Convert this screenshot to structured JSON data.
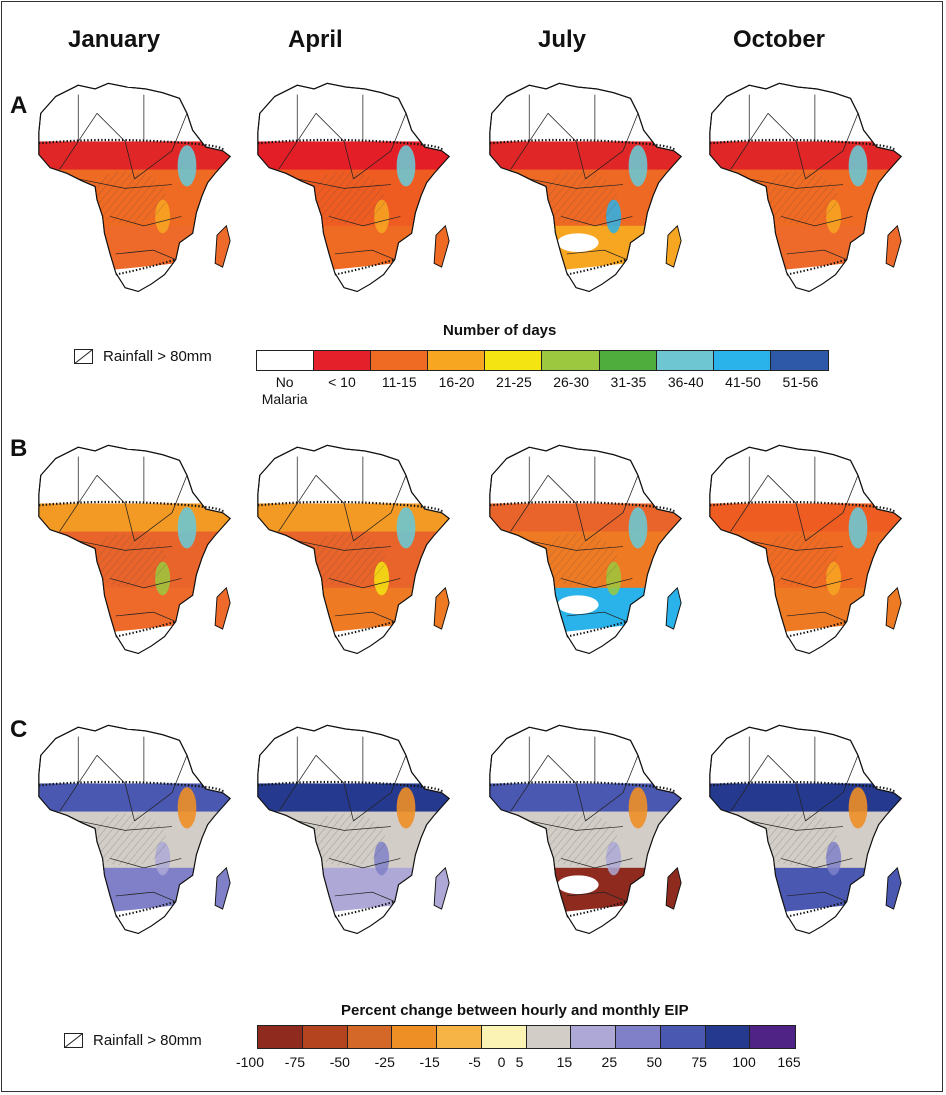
{
  "columns": [
    "January",
    "April",
    "July",
    "October"
  ],
  "rows": [
    "A",
    "B",
    "C"
  ],
  "rainfall_label": "Rainfall > 80mm",
  "legend_days": {
    "title": "Number of days",
    "bins": [
      {
        "label": "No\nMalaria",
        "color": "#ffffff"
      },
      {
        "label": "< 10",
        "color": "#e4202a"
      },
      {
        "label": "11-15",
        "color": "#ef6a22"
      },
      {
        "label": "16-20",
        "color": "#f7a622"
      },
      {
        "label": "21-25",
        "color": "#f3e412"
      },
      {
        "label": "26-30",
        "color": "#9bc83e"
      },
      {
        "label": "31-35",
        "color": "#4fad3e"
      },
      {
        "label": "36-40",
        "color": "#6dc6d1"
      },
      {
        "label": "41-50",
        "color": "#2ab2ea"
      },
      {
        "label": "51-56",
        "color": "#2e58a8"
      }
    ]
  },
  "legend_change": {
    "title": "Percent change between hourly and monthly EIP",
    "colors": [
      "#8e2a1e",
      "#b4431f",
      "#d46828",
      "#ee8f26",
      "#f6b446",
      "#fbf3b4",
      "#d2cdc6",
      "#ada8d6",
      "#7f80c8",
      "#4a58b2",
      "#253a8f",
      "#4e2385"
    ],
    "ticks": [
      "-100",
      "-75",
      "-50",
      "-25",
      "-15",
      "-5",
      "0",
      "5",
      "15",
      "25",
      "50",
      "75",
      "100",
      "165"
    ]
  },
  "maps": {
    "A": [
      {
        "top": "#e02626",
        "mid": "#ef6a22",
        "south": "#ee6a2a",
        "accents": [
          "#6dc6d1",
          "#f7a622"
        ],
        "south_extent": 1.0,
        "patch": null
      },
      {
        "top": "#e41e26",
        "mid": "#ee5c22",
        "south": "#ef6a22",
        "accents": [
          "#6dc6d1",
          "#f7a622"
        ],
        "south_extent": 1.0,
        "patch": null
      },
      {
        "top": "#e02626",
        "mid": "#ee6a24",
        "south": "#f7a622",
        "accents": [
          "#6dc6d1",
          "#2ab2ea"
        ],
        "south_extent": 0.82,
        "patch": "#ffffff"
      },
      {
        "top": "#e02626",
        "mid": "#ef6a22",
        "south": "#ee6a2a",
        "accents": [
          "#6dc6d1",
          "#f7a622"
        ],
        "south_extent": 1.0,
        "patch": null
      }
    ],
    "B": [
      {
        "top": "#f39a24",
        "mid": "#e9642a",
        "south": "#ee6a2a",
        "accents": [
          "#6dc6d1",
          "#9bc83e"
        ],
        "south_extent": 1.0,
        "patch": null
      },
      {
        "top": "#f39a24",
        "mid": "#e9642a",
        "south": "#ef7a24",
        "accents": [
          "#6dc6d1",
          "#f3e412"
        ],
        "south_extent": 1.0,
        "patch": null
      },
      {
        "top": "#e9642a",
        "mid": "#ef7a24",
        "south": "#2ab2ea",
        "accents": [
          "#6dc6d1",
          "#9bc83e"
        ],
        "south_extent": 1.0,
        "patch": "#ffffff"
      },
      {
        "top": "#ee5c22",
        "mid": "#ef6a22",
        "south": "#ef7a24",
        "accents": [
          "#6dc6d1",
          "#f7a622"
        ],
        "south_extent": 1.0,
        "patch": null
      }
    ],
    "C": [
      {
        "top": "#4a58b2",
        "mid": "#d2cdc6",
        "south": "#7f80c8",
        "accents": [
          "#ee8f26",
          "#ada8d6"
        ],
        "south_extent": 1.0,
        "patch": null
      },
      {
        "top": "#253a8f",
        "mid": "#d2cdc6",
        "south": "#ada8d6",
        "accents": [
          "#ee8f26",
          "#7f80c8"
        ],
        "south_extent": 1.0,
        "patch": null
      },
      {
        "top": "#4a58b2",
        "mid": "#d2cdc6",
        "south": "#8e2a1e",
        "accents": [
          "#ee8f26",
          "#ada8d6"
        ],
        "south_extent": 1.0,
        "patch": "#ffffff"
      },
      {
        "top": "#253a8f",
        "mid": "#d2cdc6",
        "south": "#4a58b2",
        "accents": [
          "#ee8f26",
          "#7f80c8"
        ],
        "south_extent": 1.0,
        "patch": null
      }
    ]
  }
}
